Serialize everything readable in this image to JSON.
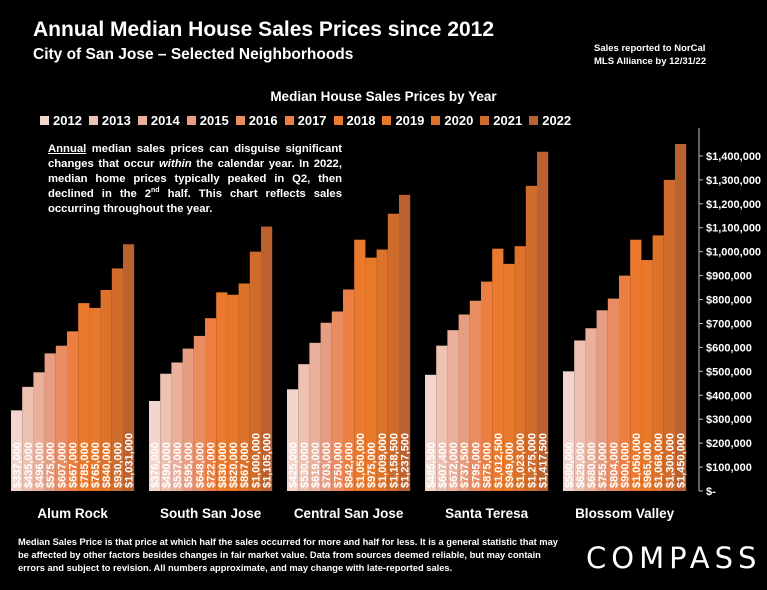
{
  "header": {
    "title": "Annual Median House Sales Prices since 2012",
    "subtitle": "City of San Jose – Selected Neighborhoods",
    "source_line1": "Sales reported to NorCal",
    "source_line2": "MLS Alliance by 12/31/22"
  },
  "annotation": {
    "p1": "Annual",
    "p2": " median sales prices can disguise significant changes that occur ",
    "p3": "within",
    "p4": " the calendar year. In 2022, median home prices typically peaked in Q2, then declined in the 2",
    "p5": "nd",
    "p6": " half. This chart reflects sales occurring throughout the year."
  },
  "footnote": "Median Sales Price is that price at which half the sales occurred for more and half for less. It is a general statistic that may be affected by other factors besides changes in fair market value. Data from sources deemed reliable, but may contain errors and subject to revision.  All numbers approximate, and may change with late-reported sales.",
  "logo": "COMPASS",
  "colors": [
    "#f2d6ce",
    "#eec2b3",
    "#eab09c",
    "#e69d82",
    "#ea8c62",
    "#ec7e41",
    "#ec7a2e",
    "#e9792a",
    "#dd722b",
    "#cf6b2b",
    "#bb6130"
  ],
  "chart_data": {
    "type": "bar",
    "title": "Median House Sales Prices by Year",
    "categories": [
      "Alum Rock",
      "South San Jose",
      "Central San Jose",
      "Santa Teresa",
      "Blossom Valley"
    ],
    "series": [
      {
        "name": "2012",
        "values": [
          337000,
          376000,
          425000,
          485500,
          500000
        ],
        "labels": [
          "$337,000",
          "$376,000",
          "$425,000",
          "$485,500",
          "$500,000"
        ]
      },
      {
        "name": "2013",
        "values": [
          435000,
          490000,
          530000,
          607400,
          629000
        ],
        "labels": [
          "$435,000",
          "$490,000",
          "$530,000",
          "$607,400",
          "$629,000"
        ]
      },
      {
        "name": "2014",
        "values": [
          496000,
          537000,
          619000,
          672000,
          680000
        ],
        "labels": [
          "$496,000",
          "$537,000",
          "$619,000",
          "$672,000",
          "$680,000"
        ]
      },
      {
        "name": "2015",
        "values": [
          575000,
          595000,
          703000,
          737500,
          755000
        ],
        "labels": [
          "$575,000",
          "$595,000",
          "$703,000",
          "$737,500",
          "$755,000"
        ]
      },
      {
        "name": "2016",
        "values": [
          607000,
          648000,
          750000,
          795000,
          804000
        ],
        "labels": [
          "$607,000",
          "$648,000",
          "$750,000",
          "$795,000",
          "$804,000"
        ]
      },
      {
        "name": "2017",
        "values": [
          667000,
          722000,
          842000,
          875000,
          900000
        ],
        "labels": [
          "$667,000",
          "$722,000",
          "$842,000",
          "$875,000",
          "$900,000"
        ]
      },
      {
        "name": "2018",
        "values": [
          785000,
          830000,
          1050000,
          1012500,
          1050000
        ],
        "labels": [
          "$785,000",
          "$830,000",
          "$1,050,000",
          "$1,012,500",
          "$1,050,000"
        ]
      },
      {
        "name": "2019",
        "values": [
          765000,
          820000,
          975000,
          949000,
          965000
        ],
        "labels": [
          "$765,000",
          "$820,000",
          "$975,000",
          "$949,000",
          "$965,000"
        ]
      },
      {
        "name": "2020",
        "values": [
          840000,
          867000,
          1009000,
          1023000,
          1068000
        ],
        "labels": [
          "$840,000",
          "$867,000",
          "$1,009,000",
          "$1,023,000",
          "$1,068,000"
        ]
      },
      {
        "name": "2021",
        "values": [
          930000,
          1000000,
          1158500,
          1275000,
          1300000
        ],
        "labels": [
          "$930,000",
          "$1,000,000",
          "$1,158,500",
          "$1,275,000",
          "$1,300,000"
        ]
      },
      {
        "name": "2022",
        "values": [
          1031000,
          1105000,
          1237500,
          1417500,
          1450000
        ],
        "labels": [
          "$1,031,000",
          "$1,105,000",
          "$1,237,500",
          "$1,417,500",
          "$1,450,000"
        ]
      }
    ],
    "ylim": [
      0,
      1500000
    ],
    "yticks": [
      0,
      100000,
      200000,
      300000,
      400000,
      500000,
      600000,
      700000,
      800000,
      900000,
      1000000,
      1100000,
      1200000,
      1300000,
      1400000
    ],
    "ytick_labels": [
      "$-",
      "$100,000",
      "$200,000",
      "$300,000",
      "$400,000",
      "$500,000",
      "$600,000",
      "$700,000",
      "$800,000",
      "$900,000",
      "$1,000,000",
      "$1,100,000",
      "$1,200,000",
      "$1,300,000",
      "$1,400,000"
    ],
    "legend_placement": "top",
    "y_axis_side": "right",
    "grid": false
  }
}
